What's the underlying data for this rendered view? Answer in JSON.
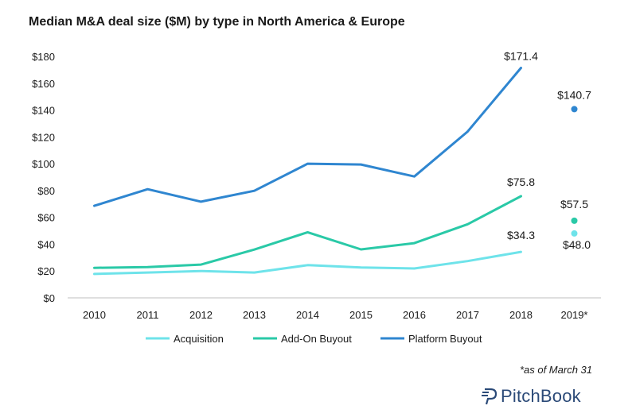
{
  "colors": {
    "acquisition": "#6ee3ea",
    "addon": "#2ac9a7",
    "platform": "#2f86d0",
    "brand": "#2b4a78"
  },
  "chart_data": {
    "type": "line",
    "title": "Median M&A deal size ($M) by type in North America & Europe",
    "categories": [
      "2010",
      "2011",
      "2012",
      "2013",
      "2014",
      "2015",
      "2016",
      "2017",
      "2018",
      "2019*"
    ],
    "ylim": [
      0,
      180
    ],
    "yticks": [
      "$0",
      "$20",
      "$40",
      "$60",
      "$80",
      "$100",
      "$120",
      "$140",
      "$160",
      "$180"
    ],
    "grid": false,
    "legend_position": "bottom",
    "series": [
      {
        "name": "Acquisition",
        "key": "acquisition",
        "values": [
          17.8,
          18.9,
          20.0,
          18.9,
          24.4,
          22.6,
          21.9,
          27.4,
          34.3,
          48.0
        ],
        "labels": {
          "8": "$34.3",
          "9": "$48.0"
        }
      },
      {
        "name": "Add-On Buyout",
        "key": "addon",
        "values": [
          22.4,
          23.0,
          24.8,
          36.0,
          48.9,
          36.1,
          40.8,
          54.9,
          75.8,
          57.5
        ],
        "labels": {
          "8": "$75.8",
          "9": "$57.5"
        }
      },
      {
        "name": "Platform Buyout",
        "key": "platform",
        "values": [
          68.6,
          81.0,
          71.7,
          79.8,
          100.0,
          99.4,
          90.5,
          124.0,
          171.4,
          140.7
        ],
        "labels": {
          "8": "$171.4",
          "9": "$140.7"
        }
      }
    ],
    "note": "*as of March 31"
  },
  "brand": "PitchBook"
}
